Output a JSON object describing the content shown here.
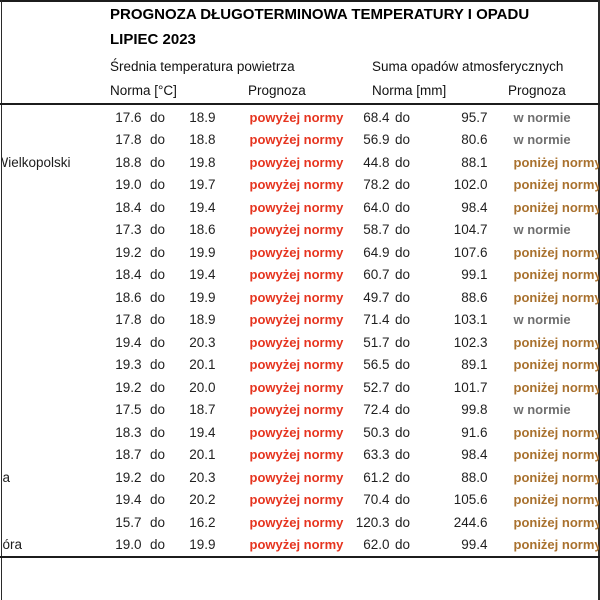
{
  "header": {
    "title": "PROGNOZA DŁUGOTERMINOWA TEMPERATURY I OPADU",
    "subtitle": "LIPIEC 2023",
    "temp_section": "Średnia temperatura powietrza",
    "precip_section": "Suma opadów atmosferycznych",
    "temp_norma_label": "Norma [°C]",
    "temp_prognoza_label": "Prognoza",
    "precip_norma_label": "Norma [mm]",
    "precip_prognoza_label": "Prognoza"
  },
  "colors": {
    "above_norm": "#e6341f",
    "below_norm": "#a9712e",
    "in_norm": "#6f6f6f",
    "rule": "#1c1c1c"
  },
  "rows": [
    {
      "city": "",
      "city_clip": false,
      "t_low": "17.6",
      "t_sep": "do",
      "t_high": "18.9",
      "t_prog": "powyżej normy",
      "p_low": "68.4",
      "p_sep": "do",
      "p_high": "95.7",
      "p_prog": "w normie",
      "p_class": "in-norm"
    },
    {
      "city": "",
      "city_clip": false,
      "t_low": "17.8",
      "t_sep": "do",
      "t_high": "18.8",
      "t_prog": "powyżej normy",
      "p_low": "56.9",
      "p_sep": "do",
      "p_high": "80.6",
      "p_prog": "w normie",
      "p_class": "in-norm"
    },
    {
      "city": "Wielkopolski",
      "city_clip": true,
      "t_low": "18.8",
      "t_sep": "do",
      "t_high": "19.8",
      "t_prog": "powyżej normy",
      "p_low": "44.8",
      "p_sep": "do",
      "p_high": "88.1",
      "p_prog": "poniżej normy",
      "p_class": "below"
    },
    {
      "city": "",
      "city_clip": false,
      "t_low": "19.0",
      "t_sep": "do",
      "t_high": "19.7",
      "t_prog": "powyżej normy",
      "p_low": "78.2",
      "p_sep": "do",
      "p_high": "102.0",
      "p_prog": "poniżej normy",
      "p_class": "below"
    },
    {
      "city": "",
      "city_clip": false,
      "t_low": "18.4",
      "t_sep": "do",
      "t_high": "19.4",
      "t_prog": "powyżej normy",
      "p_low": "64.0",
      "p_sep": "do",
      "p_high": "98.4",
      "p_prog": "poniżej normy",
      "p_class": "below"
    },
    {
      "city": "",
      "city_clip": false,
      "t_low": "17.3",
      "t_sep": "do",
      "t_high": "18.6",
      "t_prog": "powyżej normy",
      "p_low": "58.7",
      "p_sep": "do",
      "p_high": "104.7",
      "p_prog": "w normie",
      "p_class": "in-norm"
    },
    {
      "city": "",
      "city_clip": false,
      "t_low": "19.2",
      "t_sep": "do",
      "t_high": "19.9",
      "t_prog": "powyżej normy",
      "p_low": "64.9",
      "p_sep": "do",
      "p_high": "107.6",
      "p_prog": "poniżej normy",
      "p_class": "below"
    },
    {
      "city": "",
      "city_clip": false,
      "t_low": "18.4",
      "t_sep": "do",
      "t_high": "19.4",
      "t_prog": "powyżej normy",
      "p_low": "60.7",
      "p_sep": "do",
      "p_high": "99.1",
      "p_prog": "poniżej normy",
      "p_class": "below"
    },
    {
      "city": "",
      "city_clip": false,
      "t_low": "18.6",
      "t_sep": "do",
      "t_high": "19.9",
      "t_prog": "powyżej normy",
      "p_low": "49.7",
      "p_sep": "do",
      "p_high": "88.6",
      "p_prog": "poniżej normy",
      "p_class": "below"
    },
    {
      "city": "",
      "city_clip": false,
      "t_low": "17.8",
      "t_sep": "do",
      "t_high": "18.9",
      "t_prog": "powyżej normy",
      "p_low": "71.4",
      "p_sep": "do",
      "p_high": "103.1",
      "p_prog": "w normie",
      "p_class": "in-norm"
    },
    {
      "city": "",
      "city_clip": false,
      "t_low": "19.4",
      "t_sep": "do",
      "t_high": "20.3",
      "t_prog": "powyżej normy",
      "p_low": "51.7",
      "p_sep": "do",
      "p_high": "102.3",
      "p_prog": "poniżej normy",
      "p_class": "below"
    },
    {
      "city": "",
      "city_clip": false,
      "t_low": "19.3",
      "t_sep": "do",
      "t_high": "20.1",
      "t_prog": "powyżej normy",
      "p_low": "56.5",
      "p_sep": "do",
      "p_high": "89.1",
      "p_prog": "poniżej normy",
      "p_class": "below"
    },
    {
      "city": "",
      "city_clip": false,
      "t_low": "19.2",
      "t_sep": "do",
      "t_high": "20.0",
      "t_prog": "powyżej normy",
      "p_low": "52.7",
      "p_sep": "do",
      "p_high": "101.7",
      "p_prog": "poniżej normy",
      "p_class": "below"
    },
    {
      "city": "",
      "city_clip": false,
      "t_low": "17.5",
      "t_sep": "do",
      "t_high": "18.7",
      "t_prog": "powyżej normy",
      "p_low": "72.4",
      "p_sep": "do",
      "p_high": "99.8",
      "p_prog": "w normie",
      "p_class": "in-norm"
    },
    {
      "city": "",
      "city_clip": false,
      "t_low": "18.3",
      "t_sep": "do",
      "t_high": "19.4",
      "t_prog": "powyżej normy",
      "p_low": "50.3",
      "p_sep": "do",
      "p_high": "91.6",
      "p_prog": "poniżej normy",
      "p_class": "below"
    },
    {
      "city": "",
      "city_clip": false,
      "t_low": "18.7",
      "t_sep": "do",
      "t_high": "20.1",
      "t_prog": "powyżej normy",
      "p_low": "63.3",
      "p_sep": "do",
      "p_high": "98.4",
      "p_prog": "poniżej normy",
      "p_class": "below"
    },
    {
      "city": "a",
      "city_clip": false,
      "t_low": "19.2",
      "t_sep": "do",
      "t_high": "20.3",
      "t_prog": "powyżej normy",
      "p_low": "61.2",
      "p_sep": "do",
      "p_high": "88.0",
      "p_prog": "poniżej normy",
      "p_class": "below"
    },
    {
      "city": "",
      "city_clip": false,
      "t_low": "19.4",
      "t_sep": "do",
      "t_high": "20.2",
      "t_prog": "powyżej normy",
      "p_low": "70.4",
      "p_sep": "do",
      "p_high": "105.6",
      "p_prog": "poniżej normy",
      "p_class": "below"
    },
    {
      "city": "",
      "city_clip": false,
      "t_low": "15.7",
      "t_sep": "do",
      "t_high": "16.2",
      "t_prog": "powyżej normy",
      "p_low": "120.3",
      "p_sep": "do",
      "p_high": "244.6",
      "p_prog": "poniżej normy",
      "p_class": "below"
    },
    {
      "city": "óra",
      "city_clip": false,
      "t_low": "19.0",
      "t_sep": "do",
      "t_high": "19.9",
      "t_prog": "powyżej normy",
      "p_low": "62.0",
      "p_sep": "do",
      "p_high": "99.4",
      "p_prog": "poniżej normy",
      "p_class": "below"
    }
  ]
}
